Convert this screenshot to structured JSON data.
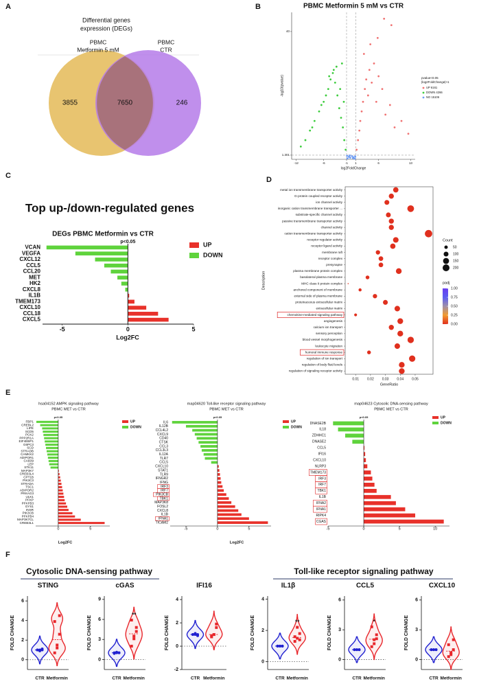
{
  "chart_data": [
    {
      "type": "venn",
      "panel": "A",
      "title_lines": [
        "Differential genes",
        "expression (DEGs)"
      ],
      "sets": [
        {
          "name_lines": [
            "PBMC",
            "Metformin 5 mM"
          ],
          "color": "#e8c470",
          "value": 3855
        },
        {
          "name_lines": [
            "PBMC",
            "CTR"
          ],
          "color": "#b57be9",
          "value": 246
        }
      ],
      "intersection": 7650
    },
    {
      "type": "volcano",
      "panel": "B",
      "title": "PBMC Metformin  5 mM vs CTR",
      "xlabel": "log2FoldChange",
      "ylabel": "-log10(pvalue)",
      "xlim": [
        -13,
        14
      ],
      "ylim": [
        0,
        46
      ],
      "xticks": [
        -12,
        -6,
        -1,
        1,
        6,
        13
      ],
      "yticks": [
        1.301,
        40
      ],
      "vlines": [
        -1,
        1
      ],
      "hline": 1.301,
      "legend_title_lines": [
        "pvalue<0.05",
        "|log2FoldChange|>1"
      ],
      "series": [
        {
          "name": "UP 6161",
          "color": "#f07272",
          "x": [
            1.2,
            1.5,
            1.8,
            2.0,
            2.3,
            2.6,
            3.0,
            3.3,
            3.7,
            4.0,
            4.5,
            5.0,
            5.5,
            6.0,
            6.8,
            7.5,
            8.5,
            9.5,
            11,
            12.5,
            2.8,
            4.2,
            5.8,
            7.2,
            8.8
          ],
          "y": [
            3,
            6,
            9,
            12,
            15,
            18,
            22,
            25,
            20,
            28,
            24,
            30,
            18,
            26,
            22,
            14,
            17,
            10,
            12,
            8,
            33,
            36,
            38,
            44,
            42
          ]
        },
        {
          "name": "DOWN 4266",
          "color": "#3ccc3c",
          "x": [
            -1.2,
            -1.5,
            -1.8,
            -2.2,
            -2.6,
            -3,
            -3.5,
            -4,
            -4.5,
            -5,
            -5.5,
            -6,
            -7,
            -8,
            -9,
            -10,
            -11,
            -2,
            -3.2,
            -4.8,
            -6.5,
            -8.5,
            -1.6,
            -2.4,
            -3.8
          ],
          "y": [
            3,
            6,
            10,
            13,
            16,
            20,
            24,
            27,
            25,
            22,
            20,
            18,
            15,
            12,
            9,
            6,
            4,
            30,
            29,
            26,
            17,
            10,
            18,
            22,
            28
          ]
        },
        {
          "name": "NO 15106",
          "color": "#6d9cf5",
          "x": [
            -0.8,
            -0.5,
            -0.2,
            0.2,
            0.5,
            0.8,
            -0.3,
            0.4,
            -0.9,
            0.9
          ],
          "y": [
            0.3,
            0.8,
            0.5,
            1.0,
            0.6,
            0.2,
            1.2,
            0.4,
            1.1,
            0.9
          ]
        }
      ]
    },
    {
      "type": "hbar",
      "panel": "C",
      "heading": "Top up-/down-regulated genes",
      "title": "DEGs PBMC Metformin vs CTR",
      "annotation": "p<0.05",
      "xlabel": "Log2FC",
      "categories": [
        "VCAN",
        "VEGFA",
        "CXCL12",
        "CCL5",
        "CCL20",
        "MET",
        "HK2",
        "CXCL8",
        "IL1B",
        "TMEM173",
        "CXCL10",
        "CCL18",
        "CXCL5"
      ],
      "values": [
        -6.2,
        -4.0,
        -2.5,
        -1.8,
        -1.3,
        -0.8,
        -0.5,
        -0.2,
        0.1,
        0.5,
        1.4,
        2.3,
        3.1
      ],
      "xlim": [
        -6.5,
        5
      ],
      "xticks": [
        -5,
        0,
        5
      ],
      "legend": [
        {
          "name": "UP",
          "color": "#e8312a"
        },
        {
          "name": "DOWN",
          "color": "#5fd33c"
        }
      ]
    },
    {
      "type": "dot",
      "panel": "D",
      "xlabel": "GeneRatio",
      "ylabel": "Description",
      "categories": [
        "metal ion transmembrane transporter activity",
        "G-protein coupled receptor activity",
        "ion channel activity",
        "inorganic cation transmembrane transporter ...",
        "substrate-specific channel activity",
        "passive transmembrane transporter activity",
        "channel activity",
        "cation transmembrane transporter activity",
        "receptor regulator activity",
        "receptor ligand activity",
        "membrane raft",
        "receptor complex",
        "presynapse",
        "plasma membrane protein complex",
        "basolateral plasma membrane",
        "MHC class II protein complex",
        "anchored component of membrane",
        "external side of plasma membrane",
        "proteinaceous extracellular matrix",
        "extracellular matrix",
        "chemokine-mediated signaling pathway",
        "angiogenesis",
        "calcium ion transport",
        "sensory perception",
        "blood vessel morphogenesis",
        "leukocyte migration",
        "humoral immune response",
        "regulation of ion transport",
        "regulation of body fluid levels",
        "regulation of signaling receptor activity"
      ],
      "values": [
        0.037,
        0.034,
        0.031,
        0.047,
        0.032,
        0.034,
        0.034,
        0.059,
        0.037,
        0.035,
        0.025,
        0.027,
        0.027,
        0.039,
        0.018,
        0.005,
        0.013,
        0.023,
        0.03,
        0.038,
        0.01,
        0.04,
        0.034,
        0.04,
        0.047,
        0.038,
        0.019,
        0.048,
        0.041,
        0.041
      ],
      "counts": [
        120,
        110,
        100,
        190,
        100,
        110,
        110,
        230,
        130,
        120,
        80,
        90,
        90,
        140,
        60,
        5,
        40,
        80,
        100,
        130,
        35,
        140,
        110,
        140,
        170,
        130,
        60,
        170,
        140,
        140
      ],
      "color": "#e0301e",
      "highlight": [
        20,
        26
      ],
      "xlim": [
        0.003,
        0.062
      ],
      "xticks": [
        0.01,
        0.02,
        0.03,
        0.04,
        0.05
      ],
      "size_title": "Count",
      "size_legend": [
        50,
        100,
        150,
        200
      ],
      "color_title": "padj",
      "colormap": [
        "#e0301e",
        "#f29a2e",
        "#a08fa8",
        "#5d5ef0",
        "#6a3df0"
      ],
      "color_ticks": [
        {
          "value": 1,
          "label": "1.00"
        },
        {
          "value": 0.75,
          "label": "0.75"
        },
        {
          "value": 0.5,
          "label": "0.50"
        },
        {
          "value": 0.25,
          "label": "0.25"
        },
        {
          "value": 0,
          "label": "0.00"
        }
      ]
    },
    {
      "type": "hbar",
      "panel": "E",
      "title": "hsa04152 AMPK signaling pathway",
      "subtitle": "PBMC MET vs CTR",
      "annotation": "p<0.05",
      "xlabel": "Log2FC",
      "categories": [
        "FBP1",
        "CREBL2",
        "LIPE",
        "SCD5",
        "PCK2",
        "PPP2R1A",
        "EIF4EBP1",
        "G6PC3",
        "SCD",
        "STRADB",
        "CAMKK2",
        "ADIPOR1",
        "CAB39",
        "LEP",
        "STK11",
        "MAP3K7",
        "CREB3L4",
        "CPT1B",
        "PIK3C3",
        "STRADA",
        "TSC1",
        "ADIPOR2",
        "PRKAG3",
        "ULK1",
        "PFKP",
        "PFKFB3",
        "GYS1",
        "INSR",
        "PIK3CB",
        "PFKFB4",
        "MAP3K7CL",
        "CREB3L1"
      ],
      "values": [
        -3.4,
        -2.8,
        -2.5,
        -2.4,
        -2.3,
        -2.2,
        -2.1,
        -2.0,
        -1.9,
        -1.8,
        -1.7,
        -1.6,
        -1.5,
        -1.4,
        -1.2,
        0.1,
        0.2,
        0.3,
        0.4,
        0.5,
        0.6,
        0.7,
        0.8,
        0.9,
        1.0,
        1.2,
        1.4,
        1.6,
        2.2,
        2.6,
        3.5,
        7.2
      ],
      "xlim": [
        -3.5,
        8
      ],
      "xticks": [
        0,
        5
      ],
      "legend": [
        {
          "name": "UP",
          "color": "#e8312a"
        },
        {
          "name": "DOWN",
          "color": "#5fd33c"
        }
      ]
    },
    {
      "type": "hbar",
      "title": "map04620 Toll-like receptor signaling pathway",
      "subtitle": "PBMC MET vs CTR",
      "annotation": "p<0.05",
      "xlabel": "Log2FC",
      "categories": [
        "IL6",
        "IL12B",
        "CCL4L2",
        "CXCL9",
        "CD40",
        "CTSK",
        "CCL3",
        "CCL3L3",
        "IL12A",
        "TLR7",
        "CCL5",
        "CXCL10",
        "STAT1",
        "TLR9",
        "IFNGR2",
        "IFNG",
        "IRF3",
        "IRF7",
        "PIK3CB",
        "TBK1",
        "MAP3K8",
        "FOSL2",
        "CXCL8",
        "IL1B",
        "IFNA1",
        "TICAM2"
      ],
      "values": [
        -7.2,
        -5.0,
        -4.0,
        -3.6,
        -3.3,
        -3.0,
        -2.7,
        -2.5,
        -2.2,
        -2.0,
        -1.0,
        0.2,
        0.3,
        0.4,
        0.5,
        0.6,
        0.8,
        1.0,
        1.4,
        1.8,
        2.2,
        2.8,
        3.3,
        3.8,
        5.0,
        8.0
      ],
      "highlight": [
        16,
        17,
        18,
        19,
        24
      ],
      "xlim": [
        -7.5,
        8.5
      ],
      "xticks": [
        -5,
        0,
        5
      ],
      "legend": [
        {
          "name": "UP",
          "color": "#e8312a"
        },
        {
          "name": "DOWN",
          "color": "#5fd33c"
        }
      ]
    },
    {
      "type": "hbar",
      "title": "map04623 Cytosolic DNA-sensing pathway",
      "subtitle": "PBMC MET vs CTR",
      "annotation": "p<0.05",
      "categories": [
        "DNASE2B",
        "IL18",
        "ZDHHC1",
        "DNASE2",
        "CCL5",
        "IFI16",
        "CXCL10",
        "NLRP3",
        "TMEM173",
        "IRF3",
        "IRF7",
        "TBK1",
        "IL1B",
        "IFNA2",
        "IFNA1",
        "RIPK4",
        "CGAS"
      ],
      "values": [
        -4.3,
        -3.6,
        -2.6,
        -1.6,
        0.1,
        0.2,
        0.3,
        0.5,
        1.0,
        1.2,
        1.5,
        1.8,
        3.8,
        4.5,
        5.8,
        7.2,
        11.2
      ],
      "highlight": [
        8,
        9,
        10,
        11,
        13,
        14,
        16
      ],
      "xlim": [
        -5,
        12
      ],
      "xticks": [
        -5,
        0,
        5,
        10
      ],
      "legend": [
        {
          "name": "UP",
          "color": "#e8312a"
        },
        {
          "name": "DOWN",
          "color": "#5fd33c"
        }
      ]
    },
    {
      "type": "violin",
      "panel": "F",
      "section": "Cytosolic DNA-sensing pathway",
      "title": "STING",
      "ylabel": "FOLD CHANGE",
      "ylim": [
        -1,
        6.5
      ],
      "yticks": [
        0,
        2,
        4,
        6
      ],
      "groups": [
        {
          "name": "CTR",
          "color": "#2020d0",
          "values": [
            1,
            1,
            1,
            1,
            0.9,
            1.1
          ]
        },
        {
          "name": "Metformin",
          "color": "#e8262b",
          "values": [
            0.7,
            1.5,
            2.6,
            3.9,
            1.2,
            4.5
          ]
        }
      ]
    },
    {
      "type": "violin",
      "title": "cGAS",
      "ylabel": "FOLD CHANGE",
      "annotation": "**",
      "ylim": [
        -1.5,
        9.5
      ],
      "yticks": [
        0,
        3,
        6,
        9
      ],
      "groups": [
        {
          "name": "CTR",
          "color": "#2020d0",
          "values": [
            1,
            1,
            1,
            0.9,
            1.1,
            1
          ]
        },
        {
          "name": "Metformin",
          "color": "#e8262b",
          "values": [
            2.0,
            3.1,
            4.2,
            5.9,
            3.5,
            4.8
          ]
        }
      ]
    },
    {
      "type": "violin",
      "title": "IFI16",
      "ylabel": "FOLD CHANGE",
      "ylim": [
        -2,
        4.3
      ],
      "yticks": [
        -2,
        0,
        2,
        4
      ],
      "groups": [
        {
          "name": "CTR",
          "color": "#2020d0",
          "values": [
            1,
            1,
            1,
            1,
            1.1,
            0.9
          ]
        },
        {
          "name": "Metformin",
          "color": "#e8262b",
          "values": [
            0.8,
            1,
            1.6,
            0.9,
            1,
            1.9
          ]
        }
      ]
    },
    {
      "type": "violin",
      "section": "Toll-like receptor signaling pathway",
      "title": "IL1β",
      "ylabel": "FOLD CHANGE",
      "annotation": "**",
      "ylim": [
        -0.5,
        4.2
      ],
      "yticks": [
        0,
        2,
        4
      ],
      "groups": [
        {
          "name": "CTR",
          "color": "#2020d0",
          "values": [
            1,
            1,
            1,
            1,
            1,
            1
          ]
        },
        {
          "name": "Metformin",
          "color": "#e8262b",
          "values": [
            1.3,
            1.5,
            1.8,
            1.6,
            2.2,
            1.4
          ]
        }
      ]
    },
    {
      "type": "violin",
      "title": "CCL5",
      "ylabel": "FOLD CHANGE",
      "annotation": "*",
      "ylim": [
        -1,
        6.4
      ],
      "yticks": [
        0,
        3,
        6
      ],
      "groups": [
        {
          "name": "CTR",
          "color": "#2020d0",
          "values": [
            1,
            1,
            1,
            1,
            1,
            1
          ]
        },
        {
          "name": "Metformin",
          "color": "#e8262b",
          "values": [
            1.3,
            2.0,
            2.5,
            3.3,
            1.6,
            2.1
          ]
        }
      ]
    },
    {
      "type": "violin",
      "title": "CXCL10",
      "ylabel": "FOLD CHANGE",
      "ylim": [
        -1,
        6.4
      ],
      "yticks": [
        0,
        3,
        6
      ],
      "groups": [
        {
          "name": "CTR",
          "color": "#2020d0",
          "values": [
            1,
            1,
            1,
            1,
            1,
            1
          ]
        },
        {
          "name": "Metformin",
          "color": "#e8262b",
          "values": [
            0.3,
            0.7,
            1.0,
            1.5,
            0.5,
            2.0
          ]
        }
      ]
    }
  ]
}
